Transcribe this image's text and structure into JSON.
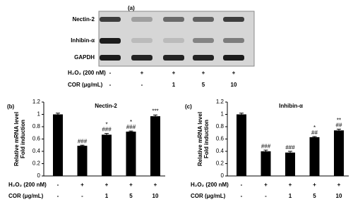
{
  "blot": {
    "panel_label": "(a)",
    "bands": [
      "Nectin-2",
      "Inhibin-α",
      "GAPDH"
    ],
    "treatments": [
      {
        "name": "H₂O₂ (200 nM)",
        "levels": [
          "-",
          "+",
          "+",
          "+",
          "+"
        ]
      },
      {
        "name": "COR (μg/mL)",
        "levels": [
          "-",
          "-",
          "1",
          "5",
          "10"
        ]
      }
    ]
  },
  "chart_data": [
    {
      "type": "bar",
      "panel_label": "(b)",
      "title": "Nectin-2",
      "ylabel": [
        "Relative mRNA level",
        "Fold induction"
      ],
      "values": [
        1.0,
        0.49,
        0.67,
        0.72,
        0.97
      ],
      "errors": [
        0.02,
        0.01,
        0.02,
        0.01,
        0.02
      ],
      "annotations": [
        [],
        [
          "###"
        ],
        [
          "*",
          "###"
        ],
        [
          "*",
          "###"
        ],
        [
          "***"
        ]
      ],
      "treatments": [
        {
          "name": "H₂O₂ (200 nM)",
          "levels": [
            "-",
            "+",
            "+",
            "+",
            "+"
          ]
        },
        {
          "name": "COR (μg/mL)",
          "levels": [
            "-",
            "-",
            "1",
            "5",
            "10"
          ]
        }
      ],
      "color": "#000000",
      "ylim": [
        0,
        1.2
      ],
      "yticks": [
        0,
        0.2,
        0.4,
        0.6,
        0.8,
        1,
        1.2
      ]
    },
    {
      "type": "bar",
      "panel_label": "(c)",
      "title": "Inhibin-α",
      "ylabel": [
        "Relative mRNA level",
        "Fold induction"
      ],
      "values": [
        1.0,
        0.4,
        0.38,
        0.63,
        0.74
      ],
      "errors": [
        0.02,
        0.02,
        0.02,
        0.01,
        0.02
      ],
      "annotations": [
        [],
        [
          "###"
        ],
        [
          "###"
        ],
        [
          "*",
          "##"
        ],
        [
          "**",
          "##"
        ]
      ],
      "treatments": [
        {
          "name": "H₂O₂ (200 nM)",
          "levels": [
            "-",
            "+",
            "+",
            "+",
            "+"
          ]
        },
        {
          "name": "COR (μg/mL)",
          "levels": [
            "-",
            "-",
            "1",
            "5",
            "10"
          ]
        }
      ],
      "color": "#000000",
      "ylim": [
        0,
        1.2
      ],
      "yticks": [
        0,
        0.2,
        0.4,
        0.6,
        0.8,
        1,
        1.2
      ]
    }
  ]
}
